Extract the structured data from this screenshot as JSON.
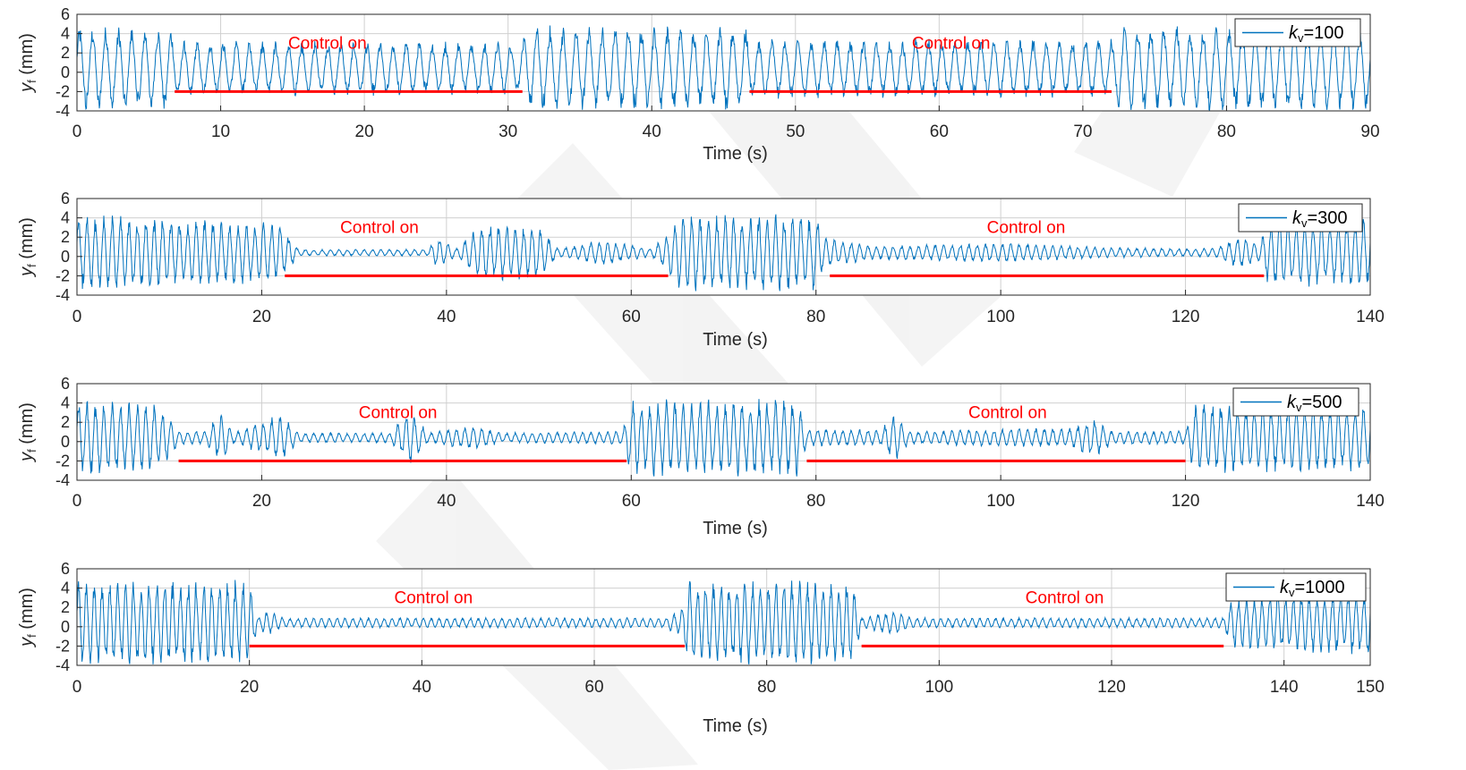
{
  "chart_data": [
    {
      "type": "line",
      "series": [
        {
          "name": "k_v=100",
          "legend_main": "k",
          "legend_sub": "v",
          "legend_rest": "=100",
          "color": "#0072BD"
        }
      ],
      "ylabel_main": "y",
      "ylabel_sub": "f",
      "ylabel_rest": " (mm)",
      "xlabel": "Time (s)",
      "xlim": [
        0,
        90
      ],
      "ylim": [
        -4,
        6
      ],
      "xticks": [
        "0",
        "10",
        "20",
        "30",
        "40",
        "50",
        "60",
        "70",
        "80",
        "90"
      ],
      "yticks": [
        "6",
        "4",
        "2",
        "0",
        "-2",
        "-4"
      ],
      "grid": true,
      "legend_position": "top-right",
      "control_periods": [
        [
          6.8,
          31
        ],
        [
          46.8,
          72
        ]
      ],
      "control_bar_y": -2,
      "annotations": [
        {
          "text": "Control on",
          "x": 14.7,
          "y": 3
        },
        {
          "text": "Control on",
          "x": 58.1,
          "y": 3
        }
      ],
      "envelope": [
        [
          0,
          5
        ],
        [
          6.5,
          4.8
        ],
        [
          7,
          3.2
        ],
        [
          31,
          3.2
        ],
        [
          31.5,
          5
        ],
        [
          46.5,
          5
        ],
        [
          47,
          3.5
        ],
        [
          72,
          3.5
        ],
        [
          72.5,
          5
        ],
        [
          90,
          5
        ]
      ]
    },
    {
      "type": "line",
      "series": [
        {
          "name": "k_v=300",
          "legend_main": "k",
          "legend_sub": "v",
          "legend_rest": "=300",
          "color": "#0072BD"
        }
      ],
      "ylabel_main": "y",
      "ylabel_sub": "f",
      "ylabel_rest": " (mm)",
      "xlabel": "Time (s)",
      "xlim": [
        0,
        140
      ],
      "ylim": [
        -4,
        6
      ],
      "xticks": [
        "0",
        "20",
        "40",
        "60",
        "80",
        "100",
        "120",
        "140"
      ],
      "yticks": [
        "6",
        "4",
        "2",
        "0",
        "-2",
        "-4"
      ],
      "grid": true,
      "legend_position": "top-right",
      "control_periods": [
        [
          22.5,
          64
        ],
        [
          81.5,
          128.5
        ]
      ],
      "control_bar_y": -2,
      "annotations": [
        {
          "text": "Control on",
          "x": 28.5,
          "y": 3
        },
        {
          "text": "Control on",
          "x": 98.5,
          "y": 3
        }
      ],
      "envelope": [
        [
          0,
          4.5
        ],
        [
          22,
          3.5
        ],
        [
          24,
          0.4
        ],
        [
          38,
          0.4
        ],
        [
          39,
          2
        ],
        [
          41,
          0.5
        ],
        [
          44,
          3.5
        ],
        [
          50,
          3.2
        ],
        [
          52,
          0.5
        ],
        [
          57,
          1.5
        ],
        [
          62,
          0.5
        ],
        [
          64,
          2
        ],
        [
          65,
          4.5
        ],
        [
          80,
          4.5
        ],
        [
          81,
          1.8
        ],
        [
          86,
          0.8
        ],
        [
          100,
          1.2
        ],
        [
          112,
          0.6
        ],
        [
          123,
          0.5
        ],
        [
          126,
          2
        ],
        [
          128,
          1
        ],
        [
          129,
          4
        ],
        [
          140,
          4
        ]
      ]
    },
    {
      "type": "line",
      "series": [
        {
          "name": "k_v=500",
          "legend_main": "k",
          "legend_sub": "v",
          "legend_rest": "=500",
          "color": "#0072BD"
        }
      ],
      "ylabel_main": "y",
      "ylabel_sub": "f",
      "ylabel_rest": " (mm)",
      "xlabel": "Time (s)",
      "xlim": [
        0,
        140
      ],
      "ylim": [
        -4,
        6
      ],
      "xticks": [
        "0",
        "20",
        "40",
        "60",
        "80",
        "100",
        "120",
        "140"
      ],
      "yticks": [
        "6",
        "4",
        "2",
        "0",
        "-2",
        "-4"
      ],
      "grid": true,
      "legend_position": "top-right",
      "control_periods": [
        [
          11,
          59.5
        ],
        [
          79,
          120
        ]
      ],
      "control_bar_y": -2,
      "annotations": [
        {
          "text": "Control on",
          "x": 30.5,
          "y": 3
        },
        {
          "text": "Control on",
          "x": 96.5,
          "y": 3
        }
      ],
      "envelope": [
        [
          0,
          4.5
        ],
        [
          9,
          4
        ],
        [
          11,
          0.8
        ],
        [
          14,
          0.8
        ],
        [
          15.5,
          3
        ],
        [
          17,
          0.6
        ],
        [
          22,
          2.8
        ],
        [
          24,
          0.6
        ],
        [
          34,
          0.6
        ],
        [
          36,
          3.5
        ],
        [
          38,
          0.6
        ],
        [
          43,
          1.5
        ],
        [
          46,
          0.6
        ],
        [
          59,
          0.8
        ],
        [
          60,
          4.5
        ],
        [
          78,
          4.5
        ],
        [
          79,
          1
        ],
        [
          87,
          1
        ],
        [
          88.5,
          3
        ],
        [
          90,
          0.8
        ],
        [
          108,
          1.2
        ],
        [
          110,
          2.5
        ],
        [
          112,
          0.8
        ],
        [
          120,
          0.8
        ],
        [
          121,
          4.2
        ],
        [
          140,
          4
        ]
      ]
    },
    {
      "type": "line",
      "series": [
        {
          "name": "k_v=1000",
          "legend_main": "k",
          "legend_sub": "v",
          "legend_rest": "=1000",
          "color": "#0072BD"
        }
      ],
      "ylabel_main": "y",
      "ylabel_sub": "f",
      "ylabel_rest": " (mm)",
      "xlabel": "Time (s)",
      "xlim": [
        0,
        150
      ],
      "ylim": [
        -4,
        6
      ],
      "xticks": [
        "0",
        "20",
        "40",
        "60",
        "80",
        "100",
        "120",
        "140",
        "150"
      ],
      "yticks": [
        "6",
        "4",
        "2",
        "0",
        "-2",
        "-4"
      ],
      "grid": true,
      "legend_position": "top-right",
      "control_periods": [
        [
          20,
          70.5
        ],
        [
          91,
          133
        ]
      ],
      "control_bar_y": -2,
      "annotations": [
        {
          "text": "Control on",
          "x": 36.8,
          "y": 3
        },
        {
          "text": "Control on",
          "x": 110,
          "y": 3
        }
      ],
      "envelope": [
        [
          0,
          5
        ],
        [
          20,
          5
        ],
        [
          21,
          0.6
        ],
        [
          22,
          1.5
        ],
        [
          24,
          0.6
        ],
        [
          68,
          0.6
        ],
        [
          70,
          1.5
        ],
        [
          71,
          5
        ],
        [
          90,
          5
        ],
        [
          91,
          0.6
        ],
        [
          95,
          1.5
        ],
        [
          97,
          0.6
        ],
        [
          133,
          0.6
        ],
        [
          134,
          3
        ],
        [
          150,
          4
        ]
      ]
    }
  ]
}
